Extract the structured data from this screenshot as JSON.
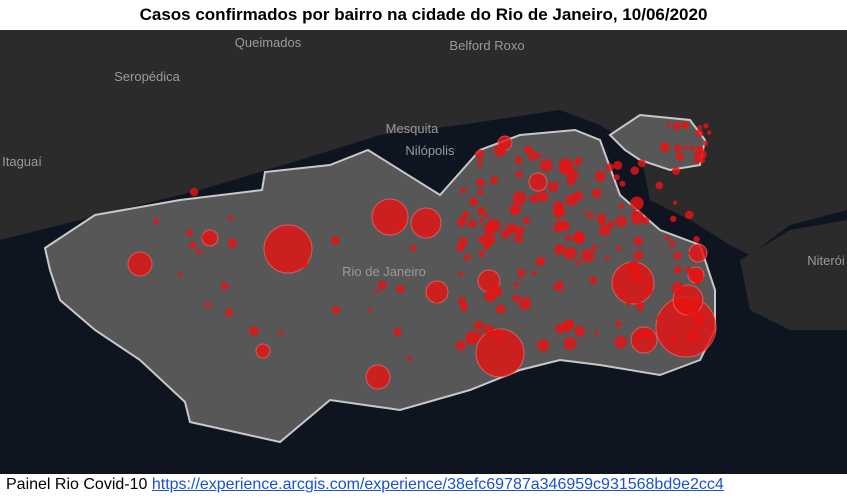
{
  "header": {
    "title": "Casos confirmados por bairro na cidade do Rio de Janeiro, 10/06/2020"
  },
  "map": {
    "place_labels": [
      "Queimados",
      "Belford Roxo",
      "Seropédica",
      "Mesquita",
      "Nilópolis",
      "Itaguaí",
      "Rio de Janeiro",
      "Niterói"
    ]
  },
  "footer": {
    "text": "Painel Rio Covid-10",
    "link": "https://experience.arcgis.com/experience/38efc69787a346959c931568bd9e2cc4"
  }
}
